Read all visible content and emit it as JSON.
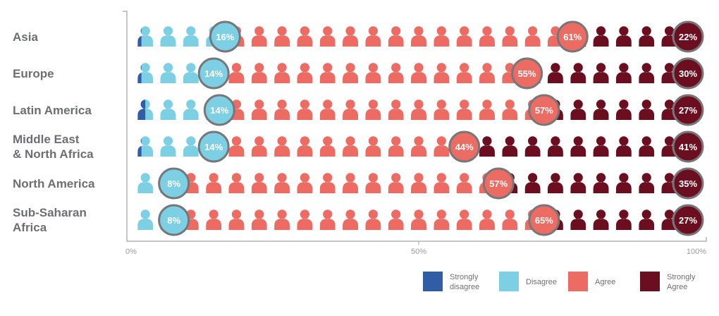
{
  "chart_data": {
    "type": "bar",
    "subtype": "stacked-horizontal-pictogram",
    "categories": [
      "Asia",
      "Europe",
      "Latin America",
      "Middle East & North Africa",
      "North America",
      "Sub-Saharan Africa"
    ],
    "category_labels": [
      [
        "Asia"
      ],
      [
        "Europe"
      ],
      [
        "Latin America"
      ],
      [
        "Middle East",
        "& North Africa"
      ],
      [
        "North America"
      ],
      [
        "Sub-Saharan",
        "Africa"
      ]
    ],
    "series": [
      {
        "name": "Strongly disagree",
        "label_lines": [
          "Strongly",
          "disagree"
        ],
        "color": "#2f5da6",
        "values": [
          1,
          1,
          2,
          1,
          0,
          0
        ],
        "printed_labels": [
          "",
          "",
          "",
          "",
          "",
          ""
        ]
      },
      {
        "name": "Disagree",
        "label_lines": [
          "Disagree"
        ],
        "color": "#7dd0e3",
        "values": [
          16,
          14,
          14,
          14,
          8,
          8
        ],
        "printed_labels": [
          "16%",
          "14%",
          "14%",
          "14%",
          "8%",
          "8%"
        ]
      },
      {
        "name": "Agree",
        "label_lines": [
          "Agree"
        ],
        "color": "#ec6b63",
        "values": [
          61,
          55,
          57,
          44,
          57,
          65
        ],
        "printed_labels": [
          "61%",
          "55%",
          "57%",
          "44%",
          "57%",
          "65%"
        ]
      },
      {
        "name": "Strongly Agree",
        "label_lines": [
          "Strongly",
          "Agree"
        ],
        "color": "#6b0f20",
        "values": [
          22,
          30,
          27,
          41,
          35,
          27
        ],
        "printed_labels": [
          "22%",
          "30%",
          "27%",
          "41%",
          "35%",
          "27%"
        ]
      }
    ],
    "x_ticks": [
      "0%",
      "50%",
      "100%"
    ],
    "xlim": [
      0,
      100
    ],
    "icons_per_row": 25,
    "grid": false,
    "legend_position": "bottom-right"
  }
}
